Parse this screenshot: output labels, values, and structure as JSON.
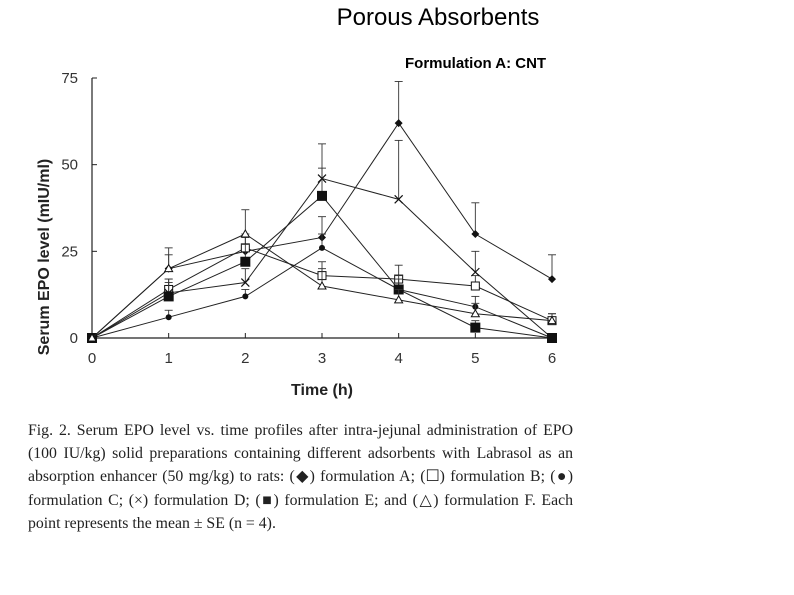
{
  "slide": {
    "title": "Porous Absorbents",
    "annotation": "Formulation A: CNT"
  },
  "chart_data": {
    "type": "line",
    "title": "",
    "xlabel": "Time (h)",
    "ylabel": "Serum EPO level (mIU/ml)",
    "x": [
      0,
      1,
      2,
      3,
      4,
      5,
      6
    ],
    "xticks": [
      "0",
      "1",
      "2",
      "3",
      "4",
      "5",
      "6"
    ],
    "yticks": [
      "0",
      "25",
      "50",
      "75"
    ],
    "xlim": [
      0,
      6
    ],
    "ylim": [
      0,
      75
    ],
    "grid": false,
    "series": [
      {
        "name": "formulation A",
        "marker": "diamond",
        "values": [
          0,
          20,
          25,
          29,
          62,
          30,
          17
        ],
        "err": [
          0,
          4,
          4,
          6,
          12,
          9,
          7
        ]
      },
      {
        "name": "formulation B",
        "marker": "square-open",
        "values": [
          0,
          14,
          26,
          18,
          17,
          15,
          5
        ],
        "err": [
          0,
          3,
          4,
          4,
          4,
          3,
          2
        ]
      },
      {
        "name": "formulation C",
        "marker": "circle",
        "values": [
          0,
          6,
          12,
          26,
          14,
          9,
          0
        ],
        "err": [
          0,
          2,
          2,
          4,
          3,
          3,
          0
        ]
      },
      {
        "name": "formulation D",
        "marker": "cross",
        "values": [
          0,
          13,
          16,
          46,
          40,
          19,
          0
        ],
        "err": [
          0,
          4,
          4,
          10,
          17,
          6,
          0
        ]
      },
      {
        "name": "formulation E",
        "marker": "square",
        "values": [
          0,
          12,
          22,
          41,
          14,
          3,
          0
        ],
        "err": [
          0,
          4,
          5,
          8,
          4,
          2,
          0
        ]
      },
      {
        "name": "formulation F",
        "marker": "triangle-open",
        "values": [
          0,
          20,
          30,
          15,
          11,
          7,
          5
        ],
        "err": [
          0,
          6,
          7,
          5,
          3,
          3,
          2
        ]
      }
    ]
  },
  "caption": "Fig. 2. Serum EPO level vs. time profiles after intra-jejunal administration of EPO (100 IU/kg) solid preparations containing different adsorbents with Labrasol as an absorption enhancer (50 mg/kg) to rats: (◆) formulation A; (☐) formulation B; (●) formulation C; (×) formulation D; (■) formulation E; and (△) formulation F. Each point represents the mean ± SE (n = 4)."
}
